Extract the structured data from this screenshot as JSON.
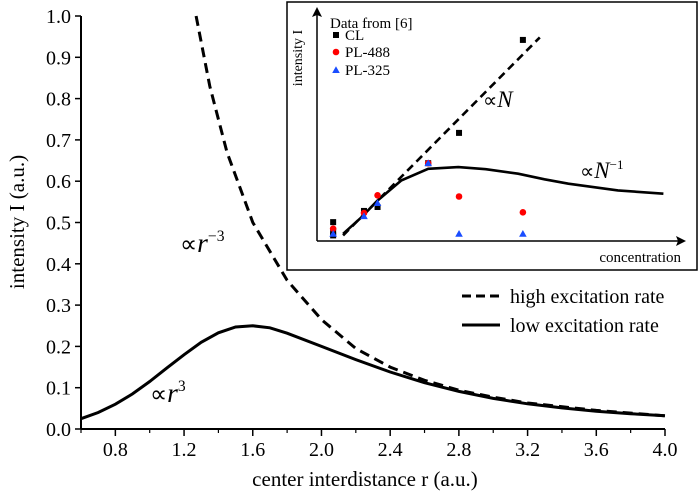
{
  "chart_data": [
    {
      "type": "line",
      "xlabel": "center interdistance r (a.u.)",
      "ylabel": "intensity I (a.u.)",
      "xlim": [
        0.6,
        4.0
      ],
      "ylim": [
        0.0,
        1.0
      ],
      "x_ticks": [
        "0.8",
        "1.2",
        "1.6",
        "2.0",
        "2.4",
        "2.8",
        "3.2",
        "3.6",
        "4.0"
      ],
      "y_ticks": [
        "0.0",
        "0.1",
        "0.2",
        "0.3",
        "0.4",
        "0.5",
        "0.6",
        "0.7",
        "0.8",
        "0.9",
        "1.0"
      ],
      "grid": false,
      "legend_position": "right",
      "series": [
        {
          "name": "high excitation rate",
          "style": "dashed",
          "color": "#000000",
          "x": [
            1.27,
            1.35,
            1.45,
            1.6,
            1.8,
            2.0,
            2.2,
            2.4,
            2.6,
            2.8,
            3.0,
            3.2,
            3.6,
            4.0
          ],
          "y": [
            1.0,
            0.83,
            0.67,
            0.5,
            0.36,
            0.265,
            0.195,
            0.15,
            0.118,
            0.094,
            0.077,
            0.063,
            0.045,
            0.032
          ]
        },
        {
          "name": "low excitation rate",
          "style": "solid",
          "color": "#000000",
          "x": [
            0.6,
            0.7,
            0.8,
            0.9,
            1.0,
            1.1,
            1.2,
            1.3,
            1.4,
            1.5,
            1.6,
            1.7,
            1.8,
            2.0,
            2.2,
            2.4,
            2.6,
            2.8,
            3.0,
            3.2,
            3.4,
            3.6,
            3.8,
            4.0
          ],
          "y": [
            0.025,
            0.04,
            0.06,
            0.085,
            0.115,
            0.148,
            0.18,
            0.21,
            0.233,
            0.247,
            0.25,
            0.245,
            0.232,
            0.2,
            0.168,
            0.138,
            0.112,
            0.091,
            0.074,
            0.061,
            0.051,
            0.043,
            0.037,
            0.032
          ]
        }
      ],
      "annotations": [
        {
          "base": "∝",
          "var": "r",
          "sup": "−3"
        },
        {
          "base": "∝",
          "var": "r",
          "sup": "3"
        }
      ]
    },
    {
      "type": "scatter",
      "title": "Data from [6]",
      "xlabel": "concentration",
      "ylabel": "intensity I",
      "legend_position": "top-left",
      "series": [
        {
          "name": "CL",
          "marker": "square",
          "color": "#000000",
          "x": [
            0.44,
            0.44,
            0.44,
            1.28,
            1.65,
            3.03,
            3.87,
            5.61
          ],
          "y": [
            0.81,
            0.39,
            0.24,
            1.29,
            1.46,
            3.34,
            4.64,
            8.63
          ]
        },
        {
          "name": "PL-488",
          "marker": "circle",
          "color": "#ff0000",
          "x": [
            0.44,
            1.28,
            1.65,
            3.03,
            3.87,
            5.61
          ],
          "y": [
            0.53,
            1.2,
            1.96,
            3.34,
            1.91,
            1.23
          ]
        },
        {
          "name": "PL-325",
          "marker": "triangle",
          "color": "#1a4dff",
          "x": [
            0.44,
            1.28,
            1.65,
            3.03,
            3.87,
            5.61
          ],
          "y": [
            0.31,
            1.07,
            1.63,
            3.34,
            0.31,
            0.31
          ]
        },
        {
          "style": "dashed",
          "color": "#000000",
          "x": [
            0.71,
            6.07
          ],
          "y": [
            0.24,
            8.74
          ]
        },
        {
          "style": "solid",
          "color": "#000000",
          "x": [
            0.71,
            1.2,
            1.65,
            2.3,
            3.03,
            3.85,
            4.6,
            5.48,
            6.2,
            6.85,
            8.2,
            9.44
          ],
          "y": [
            0.31,
            1.0,
            1.74,
            2.6,
            3.1,
            3.17,
            3.08,
            2.89,
            2.65,
            2.46,
            2.17,
            2.03
          ]
        }
      ],
      "annotations": [
        {
          "base": "∝",
          "var": "N",
          "sup": ""
        },
        {
          "base": "∝",
          "var": "N",
          "sup": "−1"
        }
      ]
    }
  ]
}
